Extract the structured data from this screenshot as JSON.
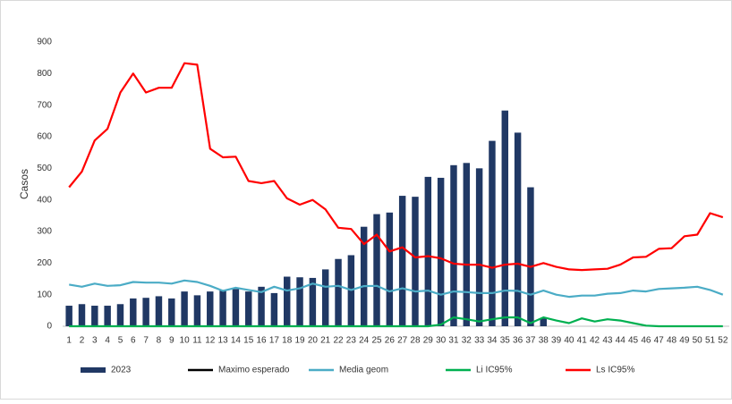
{
  "chart_data": {
    "type": "bar-line",
    "y_label": "Casos",
    "categories": [
      "1",
      "2",
      "3",
      "4",
      "5",
      "6",
      "7",
      "8",
      "9",
      "10",
      "11",
      "12",
      "13",
      "14",
      "15",
      "16",
      "17",
      "18",
      "19",
      "20",
      "21",
      "22",
      "23",
      "24",
      "25",
      "26",
      "27",
      "28",
      "29",
      "30",
      "31",
      "32",
      "33",
      "34",
      "35",
      "36",
      "37",
      "38",
      "39",
      "40",
      "41",
      "42",
      "43",
      "44",
      "45",
      "46",
      "47",
      "48",
      "49",
      "50",
      "51",
      "52"
    ],
    "ylim": [
      0,
      900
    ],
    "yticks": [
      0,
      100,
      200,
      300,
      400,
      500,
      600,
      700,
      800,
      900
    ],
    "series": [
      {
        "name": "2023",
        "kind": "bar",
        "color": "#203864",
        "values": [
          65,
          70,
          65,
          65,
          70,
          88,
          90,
          95,
          88,
          110,
          98,
          110,
          115,
          118,
          110,
          125,
          105,
          157,
          155,
          153,
          180,
          213,
          225,
          315,
          355,
          360,
          413,
          410,
          473,
          470,
          510,
          517,
          500,
          587,
          683,
          613,
          440,
          25,
          null,
          null,
          null,
          null,
          null,
          null,
          null,
          null,
          null,
          null,
          null,
          null,
          null,
          null
        ]
      },
      {
        "name": "Maximo esperado",
        "kind": "line",
        "color": "#000000",
        "values": [
          null,
          null,
          null,
          null,
          null,
          null,
          null,
          null,
          null,
          null,
          null,
          null,
          null,
          null,
          null,
          null,
          null,
          null,
          null,
          null,
          null,
          null,
          null,
          null,
          null,
          null,
          null,
          null,
          null,
          null,
          null,
          null,
          null,
          null,
          null,
          null,
          null,
          null,
          null,
          null,
          null,
          null,
          null,
          null,
          null,
          null,
          null,
          null,
          null,
          null,
          null,
          null
        ]
      },
      {
        "name": "Media geom",
        "kind": "line",
        "color": "#4bacc6",
        "values": [
          132,
          125,
          135,
          128,
          130,
          140,
          138,
          138,
          135,
          145,
          140,
          128,
          112,
          122,
          115,
          108,
          125,
          113,
          120,
          135,
          125,
          128,
          115,
          127,
          128,
          110,
          120,
          110,
          113,
          100,
          110,
          108,
          105,
          105,
          113,
          112,
          100,
          113,
          100,
          93,
          97,
          97,
          103,
          105,
          113,
          110,
          118,
          120,
          122,
          125,
          115,
          100
        ]
      },
      {
        "name": "Li IC95%",
        "kind": "line",
        "color": "#00b050",
        "values": [
          0,
          0,
          0,
          0,
          0,
          0,
          0,
          0,
          0,
          0,
          0,
          0,
          0,
          0,
          0,
          0,
          0,
          0,
          0,
          0,
          0,
          0,
          0,
          0,
          0,
          0,
          0,
          0,
          0,
          5,
          28,
          22,
          15,
          22,
          28,
          28,
          10,
          28,
          18,
          10,
          25,
          15,
          22,
          18,
          10,
          2,
          0,
          0,
          0,
          0,
          0,
          0
        ]
      },
      {
        "name": "Ls IC95%",
        "kind": "line",
        "color": "#ff0000",
        "values": [
          440,
          490,
          588,
          625,
          740,
          800,
          740,
          755,
          755,
          833,
          828,
          562,
          535,
          537,
          460,
          453,
          460,
          405,
          385,
          400,
          370,
          312,
          308,
          260,
          290,
          237,
          250,
          218,
          222,
          215,
          198,
          195,
          195,
          185,
          195,
          198,
          188,
          200,
          188,
          180,
          178,
          180,
          182,
          195,
          218,
          220,
          245,
          247,
          285,
          290,
          358,
          345
        ]
      }
    ]
  }
}
